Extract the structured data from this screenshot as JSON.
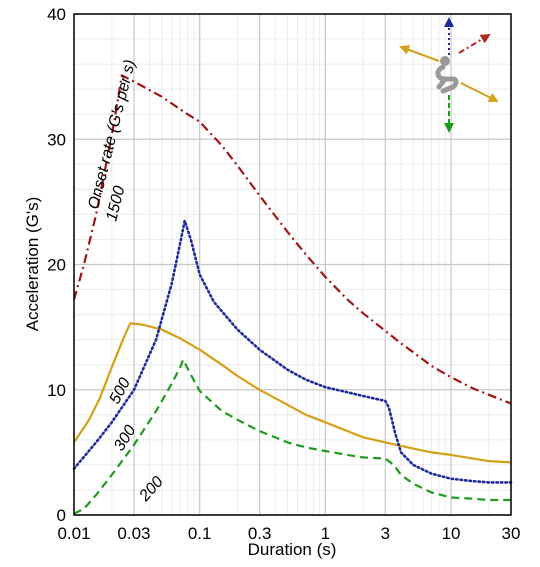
{
  "chart_data": {
    "type": "line",
    "title": "",
    "xlabel": "Duration (s)",
    "ylabel": "Acceleration (G's)",
    "x_scale": "log",
    "xlim": [
      0.01,
      30
    ],
    "ylim": [
      0,
      40
    ],
    "x_ticks": [
      {
        "value": 0.01,
        "label": "0.01"
      },
      {
        "value": 0.03,
        "label": "0.03"
      },
      {
        "value": 0.1,
        "label": "0.1"
      },
      {
        "value": 0.3,
        "label": "0.3"
      },
      {
        "value": 1,
        "label": "1"
      },
      {
        "value": 3,
        "label": "3"
      },
      {
        "value": 10,
        "label": "10"
      },
      {
        "value": 30,
        "label": "30"
      }
    ],
    "y_ticks": [
      {
        "value": 0,
        "label": "0"
      },
      {
        "value": 10,
        "label": "10"
      },
      {
        "value": 20,
        "label": "20"
      },
      {
        "value": 30,
        "label": "30"
      },
      {
        "value": 40,
        "label": "40"
      }
    ],
    "grid": true,
    "annotation": "Onset rate (G's per s)",
    "series": [
      {
        "name": "1500",
        "color": "#a31515",
        "dash": "dashdot",
        "points": [
          [
            0.01,
            17.2
          ],
          [
            0.012,
            20.0
          ],
          [
            0.015,
            24.0
          ],
          [
            0.018,
            28.0
          ],
          [
            0.021,
            31.5
          ],
          [
            0.024,
            35.1
          ],
          [
            0.03,
            34.6
          ],
          [
            0.05,
            33.4
          ],
          [
            0.08,
            32.0
          ],
          [
            0.1,
            31.4
          ],
          [
            0.15,
            29.5
          ],
          [
            0.2,
            27.9
          ],
          [
            0.3,
            25.5
          ],
          [
            0.5,
            22.6
          ],
          [
            0.7,
            20.8
          ],
          [
            1,
            19.0
          ],
          [
            1.5,
            17.2
          ],
          [
            2,
            16.1
          ],
          [
            3,
            14.7
          ],
          [
            4,
            13.7
          ],
          [
            5,
            13.0
          ],
          [
            7,
            11.9
          ],
          [
            10,
            11.0
          ],
          [
            15,
            10.1
          ],
          [
            20,
            9.6
          ],
          [
            30,
            8.9
          ]
        ]
      },
      {
        "name": "500",
        "color": "#d4a017",
        "dash": "solid",
        "points": [
          [
            0.01,
            5.8
          ],
          [
            0.013,
            7.5
          ],
          [
            0.016,
            9.3
          ],
          [
            0.02,
            11.8
          ],
          [
            0.025,
            14.2
          ],
          [
            0.028,
            15.3
          ],
          [
            0.035,
            15.2
          ],
          [
            0.05,
            14.8
          ],
          [
            0.07,
            14.1
          ],
          [
            0.1,
            13.2
          ],
          [
            0.15,
            12.0
          ],
          [
            0.2,
            11.1
          ],
          [
            0.3,
            10.0
          ],
          [
            0.5,
            8.8
          ],
          [
            0.7,
            8.0
          ],
          [
            1,
            7.4
          ],
          [
            1.5,
            6.7
          ],
          [
            2,
            6.2
          ],
          [
            3,
            5.8
          ],
          [
            5,
            5.3
          ],
          [
            7,
            5.0
          ],
          [
            10,
            4.8
          ],
          [
            15,
            4.5
          ],
          [
            20,
            4.3
          ],
          [
            30,
            4.2
          ]
        ]
      },
      {
        "name": "300",
        "color": "#1f2a9e",
        "dash": "dotted",
        "points": [
          [
            0.01,
            3.7
          ],
          [
            0.015,
            5.8
          ],
          [
            0.02,
            7.4
          ],
          [
            0.03,
            10.0
          ],
          [
            0.045,
            14.0
          ],
          [
            0.06,
            18.5
          ],
          [
            0.07,
            21.7
          ],
          [
            0.076,
            23.5
          ],
          [
            0.085,
            22.0
          ],
          [
            0.1,
            19.2
          ],
          [
            0.13,
            17.0
          ],
          [
            0.2,
            14.8
          ],
          [
            0.3,
            13.2
          ],
          [
            0.5,
            11.6
          ],
          [
            0.7,
            10.8
          ],
          [
            1,
            10.2
          ],
          [
            1.5,
            9.8
          ],
          [
            2,
            9.5
          ],
          [
            3,
            9.1
          ],
          [
            3.2,
            8.6
          ],
          [
            3.6,
            6.5
          ],
          [
            4,
            5.0
          ],
          [
            5,
            4.0
          ],
          [
            7,
            3.3
          ],
          [
            10,
            2.9
          ],
          [
            15,
            2.7
          ],
          [
            20,
            2.6
          ],
          [
            30,
            2.6
          ]
        ]
      },
      {
        "name": "200",
        "color": "#1e9a1e",
        "dash": "dashed",
        "points": [
          [
            0.01,
            0.1
          ],
          [
            0.012,
            0.5
          ],
          [
            0.015,
            1.6
          ],
          [
            0.02,
            3.2
          ],
          [
            0.03,
            5.6
          ],
          [
            0.045,
            8.3
          ],
          [
            0.06,
            10.5
          ],
          [
            0.07,
            11.8
          ],
          [
            0.074,
            12.4
          ],
          [
            0.085,
            11.2
          ],
          [
            0.1,
            9.9
          ],
          [
            0.15,
            8.3
          ],
          [
            0.2,
            7.6
          ],
          [
            0.3,
            6.7
          ],
          [
            0.5,
            5.8
          ],
          [
            0.7,
            5.4
          ],
          [
            1,
            5.1
          ],
          [
            1.5,
            4.8
          ],
          [
            2,
            4.6
          ],
          [
            3,
            4.5
          ],
          [
            3.5,
            4.0
          ],
          [
            4,
            3.2
          ],
          [
            5,
            2.5
          ],
          [
            7,
            1.8
          ],
          [
            10,
            1.4
          ],
          [
            15,
            1.3
          ],
          [
            20,
            1.2
          ],
          [
            30,
            1.2
          ]
        ]
      }
    ],
    "curve_labels": [
      {
        "text": "1500",
        "series": "1500"
      },
      {
        "text": "500",
        "series": "500"
      },
      {
        "text": "300",
        "series": "300"
      },
      {
        "text": "200",
        "series": "200"
      }
    ],
    "legend": "none"
  }
}
